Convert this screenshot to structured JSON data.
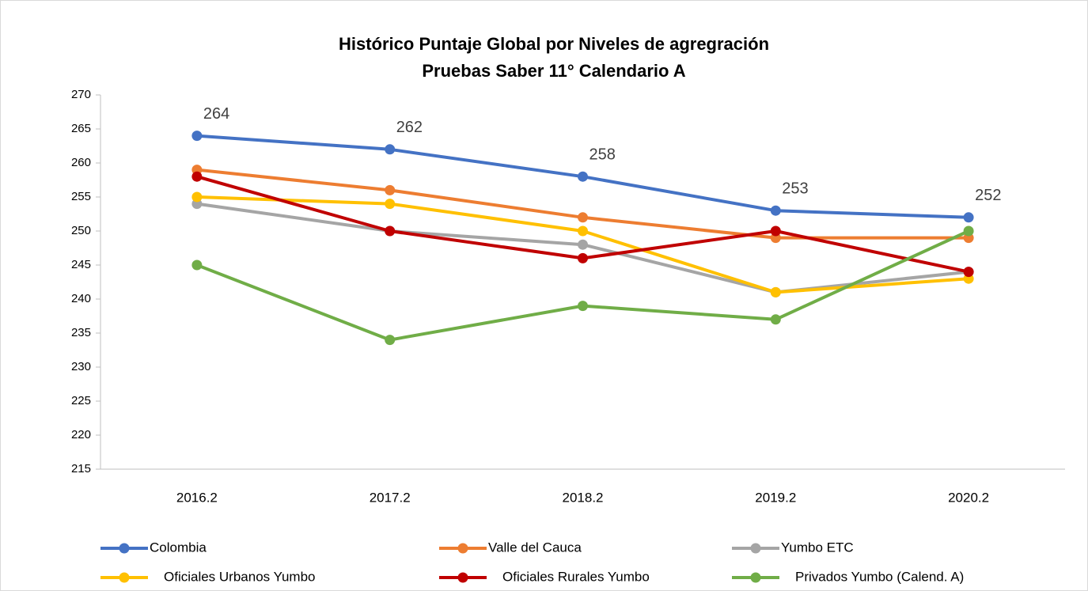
{
  "chart_data": {
    "type": "line",
    "title": [
      "Histórico Puntaje Global por Niveles de agregración",
      "Pruebas Saber 11° Calendario A"
    ],
    "categories": [
      "2016.2",
      "2017.2",
      "2018.2",
      "2019.2",
      "2020.2"
    ],
    "series": [
      {
        "name": "Colombia",
        "color": "#4472c4",
        "values": [
          264,
          262,
          258,
          253,
          252
        ],
        "show_labels": true
      },
      {
        "name": "Valle del Cauca",
        "color": "#ed7d31",
        "values": [
          259,
          256,
          252,
          249,
          249
        ]
      },
      {
        "name": "Yumbo ETC",
        "color": "#a5a5a5",
        "values": [
          254,
          250,
          248,
          241,
          244
        ]
      },
      {
        "name": "Oficiales Urbanos Yumbo",
        "color": "#ffc000",
        "values": [
          255,
          254,
          250,
          241,
          243
        ]
      },
      {
        "name": "Oficiales Rurales Yumbo",
        "color": "#c00000",
        "values": [
          258,
          250,
          246,
          250,
          244
        ]
      },
      {
        "name": "Privados Yumbo (Calend. A)",
        "color": "#70ad47",
        "values": [
          245,
          234,
          239,
          237,
          250
        ]
      }
    ],
    "ylim": [
      215,
      270
    ],
    "yticks": [
      215,
      220,
      225,
      230,
      235,
      240,
      245,
      250,
      255,
      260,
      265,
      270
    ],
    "grid": false,
    "legend": "bottom"
  }
}
